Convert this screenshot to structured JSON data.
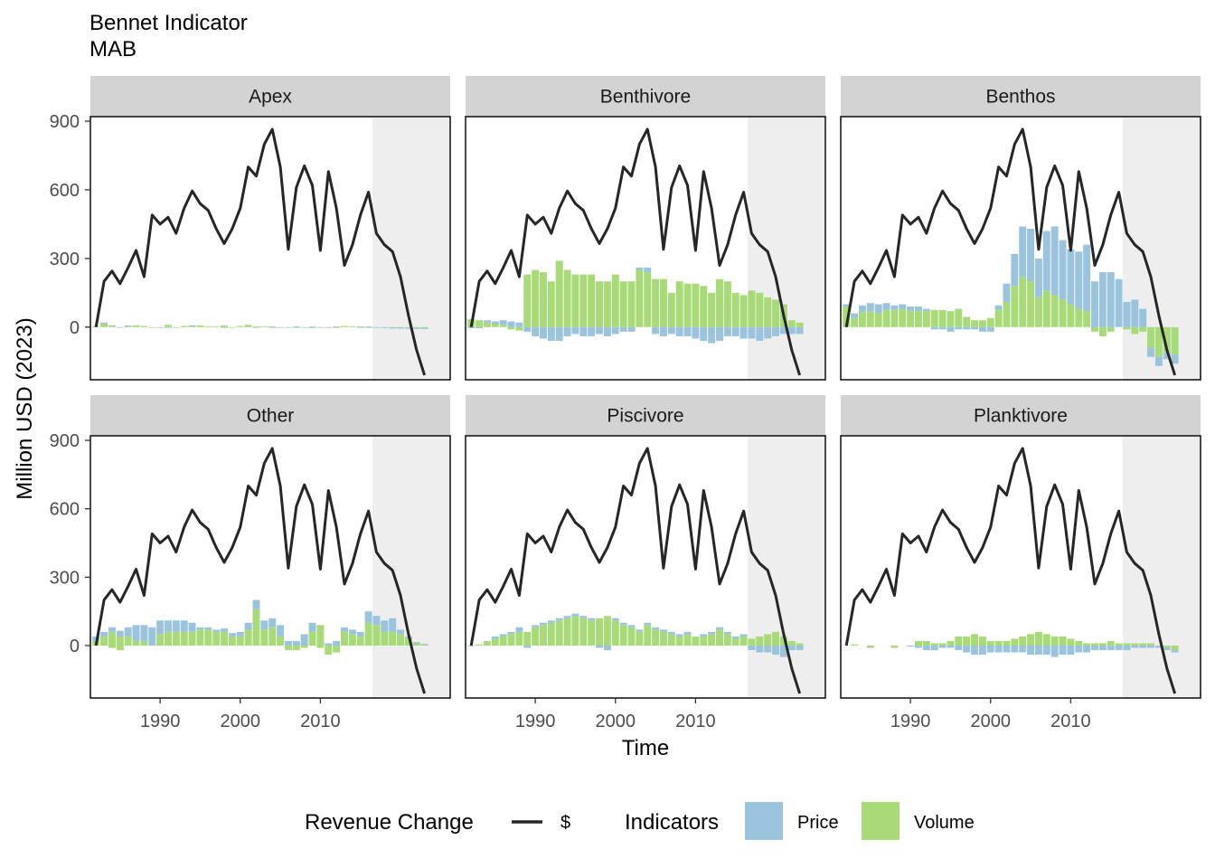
{
  "title": "Bennet Indicator",
  "subtitle": "MAB",
  "chart_data": {
    "type": "bar",
    "xlabel": "Time",
    "ylabel": "Million USD (2023)",
    "ylim": [
      -230,
      920
    ],
    "xlim": [
      1981.3,
      2026.2
    ],
    "x_ticks": [
      "1990",
      "2000",
      "2010"
    ],
    "y_ticks": [
      "0",
      "300",
      "600",
      "900"
    ],
    "shaded_region": [
      2016.5,
      2026.2
    ],
    "years": [
      1982,
      1983,
      1984,
      1985,
      1986,
      1987,
      1988,
      1989,
      1990,
      1991,
      1992,
      1993,
      1994,
      1995,
      1996,
      1997,
      1998,
      1999,
      2000,
      2001,
      2002,
      2003,
      2004,
      2005,
      2006,
      2007,
      2008,
      2009,
      2010,
      2011,
      2012,
      2013,
      2014,
      2015,
      2016,
      2017,
      2018,
      2019,
      2020,
      2021,
      2022,
      2023
    ],
    "line_series": {
      "name": "$",
      "values": [
        0,
        200,
        245,
        190,
        260,
        335,
        220,
        490,
        450,
        480,
        410,
        520,
        595,
        540,
        510,
        430,
        365,
        430,
        520,
        700,
        660,
        800,
        865,
        700,
        340,
        610,
        705,
        620,
        335,
        680,
        520,
        270,
        360,
        490,
        590,
        410,
        360,
        330,
        220,
        50,
        -100,
        -210
      ]
    },
    "panels": [
      {
        "name": "Apex",
        "price": [
          0,
          5,
          3,
          -2,
          2,
          0,
          0,
          0,
          -3,
          -2,
          0,
          0,
          5,
          0,
          0,
          0,
          -3,
          0,
          0,
          0,
          -3,
          0,
          -2,
          -2,
          -3,
          -2,
          -2,
          -2,
          -3,
          -2,
          -2,
          0,
          0,
          -3,
          -3,
          -3,
          -4,
          -4,
          -4,
          -4,
          -5,
          -5
        ],
        "volume": [
          5,
          15,
          5,
          0,
          5,
          8,
          5,
          -3,
          0,
          10,
          -3,
          5,
          3,
          8,
          4,
          3,
          8,
          -3,
          5,
          10,
          3,
          3,
          3,
          0,
          0,
          3,
          0,
          3,
          0,
          0,
          3,
          5,
          3,
          3,
          3,
          0,
          0,
          -2,
          -2,
          -3,
          -3,
          -3
        ]
      },
      {
        "name": "Benthivore",
        "price": [
          -5,
          -5,
          10,
          10,
          20,
          25,
          20,
          -20,
          -40,
          -50,
          -60,
          -60,
          -40,
          -30,
          -40,
          -40,
          -30,
          -40,
          -30,
          -20,
          -20,
          10,
          20,
          -30,
          -40,
          -30,
          -40,
          -40,
          -50,
          -60,
          -70,
          -60,
          -40,
          -40,
          -50,
          -50,
          -60,
          -50,
          -40,
          -30,
          -30,
          -30
        ],
        "volume": [
          35,
          30,
          20,
          15,
          10,
          -10,
          -15,
          230,
          250,
          240,
          200,
          290,
          250,
          230,
          230,
          230,
          200,
          200,
          230,
          200,
          200,
          250,
          240,
          210,
          210,
          150,
          200,
          190,
          190,
          180,
          150,
          210,
          200,
          150,
          140,
          160,
          150,
          130,
          120,
          100,
          30,
          20
        ]
      },
      {
        "name": "Benthos",
        "price": [
          10,
          20,
          30,
          35,
          40,
          30,
          20,
          20,
          20,
          20,
          10,
          -10,
          -10,
          -20,
          -10,
          -10,
          -10,
          -20,
          -20,
          20,
          80,
          140,
          220,
          230,
          170,
          260,
          300,
          260,
          240,
          250,
          290,
          200,
          240,
          240,
          210,
          110,
          120,
          80,
          -40,
          -40,
          -30,
          -40
        ],
        "volume": [
          90,
          40,
          65,
          70,
          60,
          75,
          75,
          80,
          70,
          70,
          70,
          75,
          75,
          70,
          80,
          45,
          30,
          30,
          40,
          75,
          110,
          180,
          220,
          200,
          130,
          160,
          140,
          120,
          100,
          80,
          70,
          -20,
          -40,
          -20,
          0,
          -10,
          -30,
          -20,
          -90,
          -130,
          -110,
          -120
        ]
      },
      {
        "name": "Other",
        "price": [
          20,
          20,
          20,
          25,
          40,
          70,
          70,
          80,
          60,
          50,
          50,
          50,
          40,
          10,
          10,
          10,
          15,
          15,
          20,
          30,
          40,
          40,
          40,
          50,
          20,
          20,
          50,
          40,
          0,
          10,
          20,
          20,
          20,
          20,
          50,
          40,
          50,
          60,
          20,
          10,
          5,
          2
        ],
        "volume": [
          20,
          40,
          60,
          40,
          40,
          20,
          20,
          0,
          50,
          60,
          60,
          60,
          60,
          70,
          70,
          60,
          60,
          40,
          40,
          70,
          160,
          70,
          80,
          40,
          0,
          -20,
          -10,
          60,
          90,
          -20,
          -20,
          60,
          50,
          40,
          100,
          90,
          60,
          60,
          50,
          30,
          10,
          5
        ],
        "volume_neg": [
          0,
          0,
          -10,
          -20,
          0,
          0,
          0,
          0,
          0,
          0,
          0,
          0,
          0,
          0,
          0,
          0,
          0,
          0,
          0,
          0,
          0,
          0,
          0,
          0,
          -20,
          0,
          0,
          0,
          -10,
          -20,
          -10,
          0,
          0,
          0,
          0,
          0,
          0,
          0,
          0,
          0,
          0,
          0
        ]
      },
      {
        "name": "Piscivore",
        "price": [
          -3,
          0,
          0,
          10,
          10,
          10,
          20,
          -10,
          10,
          10,
          10,
          10,
          10,
          10,
          10,
          10,
          -10,
          -20,
          10,
          10,
          10,
          10,
          10,
          10,
          10,
          10,
          10,
          10,
          0,
          10,
          10,
          10,
          10,
          10,
          10,
          -20,
          -30,
          -30,
          -40,
          -50,
          -20,
          -20
        ],
        "volume": [
          0,
          5,
          20,
          30,
          40,
          50,
          60,
          60,
          80,
          90,
          100,
          110,
          120,
          130,
          120,
          110,
          120,
          130,
          110,
          90,
          80,
          60,
          90,
          70,
          60,
          50,
          40,
          50,
          40,
          40,
          50,
          70,
          50,
          30,
          40,
          30,
          40,
          50,
          60,
          40,
          20,
          10
        ]
      },
      {
        "name": "Planktivore",
        "price": [
          0,
          0,
          0,
          0,
          0,
          0,
          0,
          0,
          -5,
          -10,
          -20,
          -20,
          -10,
          -10,
          -20,
          -30,
          -40,
          -40,
          -30,
          -30,
          -30,
          -30,
          -30,
          -40,
          -40,
          -40,
          -50,
          -40,
          -40,
          -30,
          -30,
          -20,
          -20,
          -20,
          -20,
          -20,
          -10,
          -10,
          -10,
          -10,
          -10,
          -10
        ],
        "volume": [
          0,
          5,
          0,
          -10,
          0,
          0,
          -10,
          0,
          0,
          20,
          20,
          10,
          10,
          20,
          40,
          40,
          50,
          40,
          20,
          20,
          20,
          30,
          40,
          50,
          60,
          50,
          40,
          40,
          30,
          20,
          10,
          10,
          10,
          20,
          10,
          10,
          10,
          10,
          10,
          0,
          -10,
          -20
        ]
      }
    ],
    "legend": {
      "position": "bottom",
      "line_title": "Revenue Change",
      "line_label": "$",
      "bar_title": "Indicators",
      "bar_labels": [
        "Price",
        "Volume"
      ]
    },
    "colors": {
      "price": "#9ac4de",
      "volume": "#a8db78",
      "line": "#262626",
      "strip": "#d3d3d3",
      "shade": "#eeeeee"
    }
  }
}
